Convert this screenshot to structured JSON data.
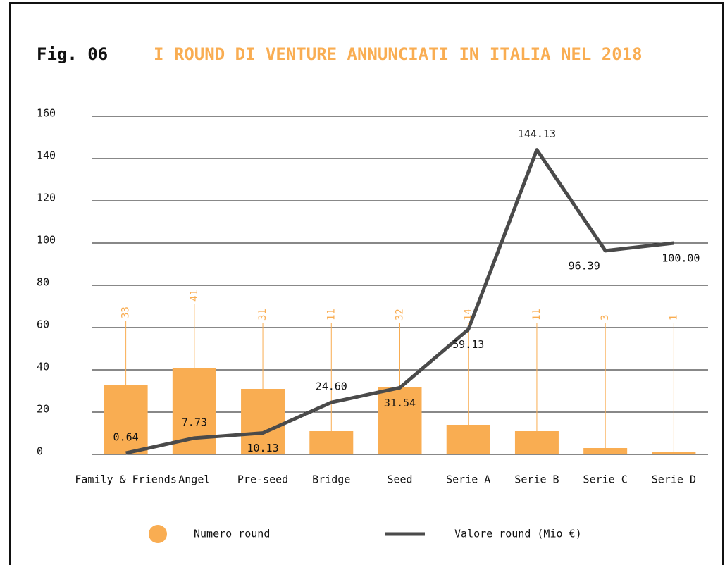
{
  "chart_data": {
    "type": "bar_line",
    "title_prefix": "Fig. 06",
    "title": "I ROUND DI VENTURE ANNUNCIATI IN ITALIA NEL 2018",
    "categories": [
      "Family & Friends",
      "Angel",
      "Pre-seed",
      "Bridge",
      "Seed",
      "Serie A",
      "Serie B",
      "Serie C",
      "Serie D"
    ],
    "series": [
      {
        "name": "Numero round",
        "type": "bar",
        "color": "#f9ad52",
        "values": [
          33,
          41,
          31,
          11,
          32,
          14,
          11,
          3,
          1
        ]
      },
      {
        "name": "Valore round (Mio €)",
        "type": "line",
        "color": "#4a4a4a",
        "values": [
          0.64,
          7.73,
          10.13,
          24.6,
          31.54,
          59.13,
          144.13,
          96.39,
          100
        ],
        "value_labels": [
          "0.64",
          "7.73",
          "10.13",
          "24.60",
          "31.54",
          "59.13",
          "144.13",
          "96.39",
          "100.00"
        ]
      }
    ],
    "ylim": [
      0,
      160
    ],
    "yticks": [
      0,
      20,
      40,
      60,
      80,
      100,
      120,
      140,
      160
    ],
    "grid": true
  }
}
